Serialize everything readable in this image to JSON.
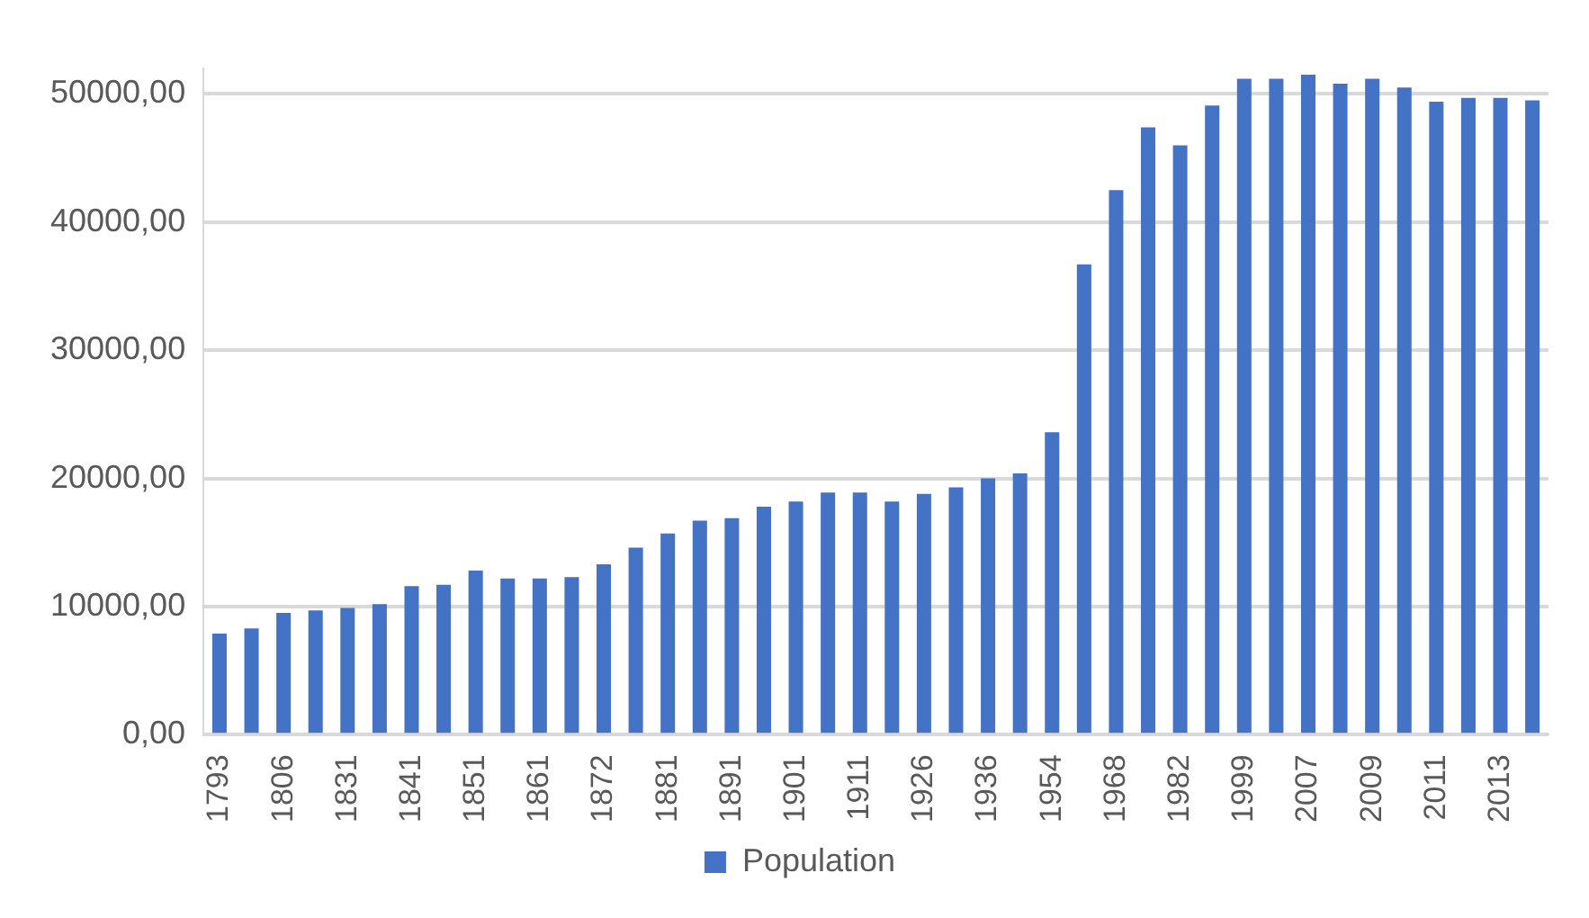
{
  "chart_data": {
    "type": "bar",
    "categories": [
      "1793",
      null,
      "1806",
      null,
      "1831",
      null,
      "1841",
      null,
      "1851",
      null,
      "1861",
      null,
      "1872",
      null,
      "1881",
      null,
      "1891",
      null,
      "1901",
      null,
      "1911",
      null,
      "1926",
      null,
      "1936",
      null,
      "1954",
      null,
      "1968",
      null,
      "1982",
      null,
      "1999",
      null,
      "2007",
      null,
      "2009",
      null,
      "2011",
      null,
      "2013",
      null
    ],
    "series": [
      {
        "name": "Population",
        "color": "#4472c4",
        "values": [
          7900,
          8300,
          9500,
          9700,
          9900,
          10200,
          11600,
          11700,
          12800,
          12200,
          12200,
          12300,
          13300,
          14600,
          15700,
          16700,
          16900,
          17800,
          18200,
          18900,
          18900,
          18200,
          18800,
          19300,
          20000,
          20400,
          23600,
          36700,
          42500,
          47400,
          46000,
          49100,
          51200,
          51200,
          51500,
          50800,
          51200,
          50500,
          49400,
          49700,
          49700,
          49500
        ]
      }
    ],
    "ylim": [
      0,
      52000
    ],
    "yticks": [
      {
        "value": 0,
        "label": "0,00"
      },
      {
        "value": 10000,
        "label": "10000,00"
      },
      {
        "value": 20000,
        "label": "20000,00"
      },
      {
        "value": 30000,
        "label": "30000,00"
      },
      {
        "value": 40000,
        "label": "40000,00"
      },
      {
        "value": 50000,
        "label": "50000,00"
      }
    ],
    "grid": "y",
    "legend": "bottom"
  }
}
